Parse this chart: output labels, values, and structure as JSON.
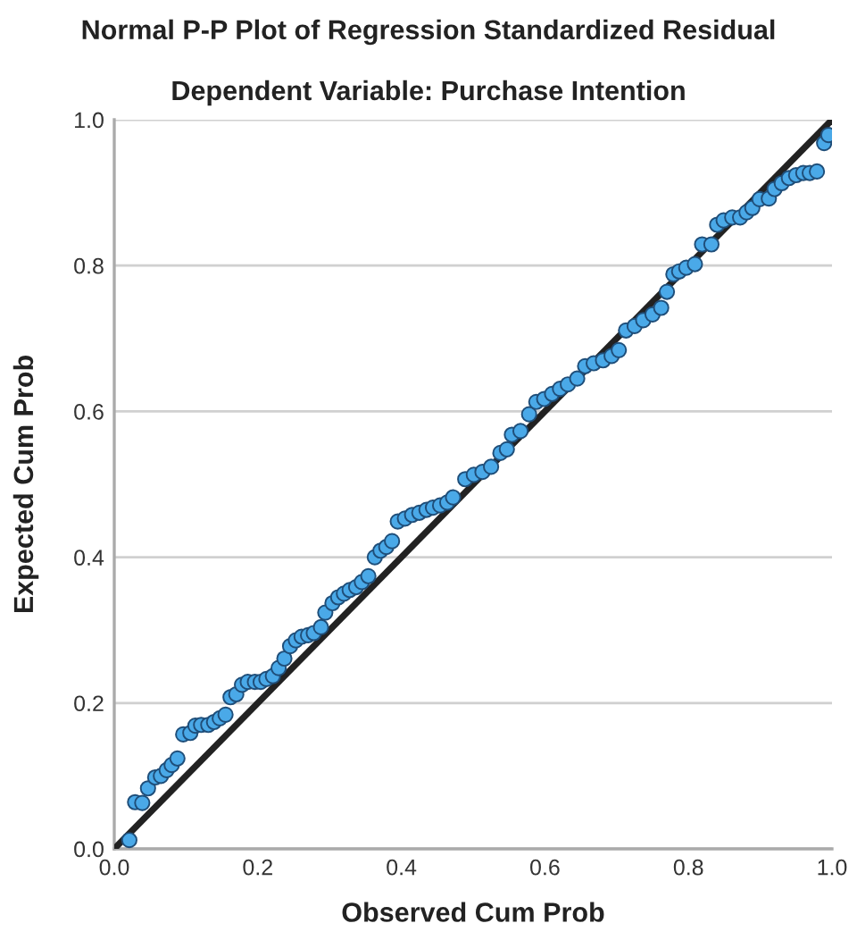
{
  "chart_data": {
    "type": "scatter",
    "title": "Normal P-P Plot of Regression Standardized Residual",
    "subtitle": "Dependent Variable: Purchase Intention",
    "xlabel": "Observed Cum Prob",
    "ylabel": "Expected Cum Prob",
    "xlim": [
      0,
      1
    ],
    "ylim": [
      0,
      1
    ],
    "xticks": [
      {
        "value": 0,
        "label": "0.0"
      },
      0.2,
      0.4,
      0.6,
      0.8,
      {
        "value": 1,
        "label": "1.0"
      }
    ],
    "yticks": [
      {
        "value": 0,
        "label": "0.0"
      },
      0.2,
      0.4,
      0.6,
      0.8,
      {
        "value": 1,
        "label": "1.0"
      }
    ],
    "grid": "y",
    "marker": "circle",
    "series": [
      {
        "color": "#4aa9e8",
        "x": [
          0.021,
          0.029,
          0.039,
          0.047,
          0.057,
          0.065,
          0.073,
          0.08,
          0.088,
          0.096,
          0.106,
          0.113,
          0.121,
          0.131,
          0.139,
          0.147,
          0.155,
          0.162,
          0.17,
          0.178,
          0.186,
          0.196,
          0.204,
          0.212,
          0.221,
          0.229,
          0.237,
          0.245,
          0.253,
          0.261,
          0.27,
          0.278,
          0.288,
          0.294,
          0.304,
          0.312,
          0.32,
          0.328,
          0.337,
          0.345,
          0.354,
          0.363,
          0.371,
          0.379,
          0.387,
          0.395,
          0.405,
          0.415,
          0.425,
          0.435,
          0.444,
          0.454,
          0.464,
          0.472,
          0.489,
          0.501,
          0.513,
          0.525,
          0.538,
          0.547,
          0.554,
          0.566,
          0.578,
          0.588,
          0.599,
          0.61,
          0.621,
          0.632,
          0.645,
          0.656,
          0.668,
          0.681,
          0.693,
          0.703,
          0.713,
          0.725,
          0.737,
          0.75,
          0.762,
          0.77,
          0.779,
          0.787,
          0.797,
          0.809,
          0.819,
          0.832,
          0.84,
          0.849,
          0.861,
          0.872,
          0.881,
          0.889,
          0.899,
          0.912,
          0.92,
          0.93,
          0.94,
          0.95,
          0.96,
          0.969,
          0.979,
          0.989,
          0.995
        ],
        "values": [
          0.012,
          0.064,
          0.063,
          0.083,
          0.098,
          0.1,
          0.108,
          0.115,
          0.124,
          0.157,
          0.159,
          0.169,
          0.17,
          0.17,
          0.174,
          0.179,
          0.184,
          0.208,
          0.212,
          0.225,
          0.229,
          0.229,
          0.229,
          0.233,
          0.237,
          0.248,
          0.261,
          0.278,
          0.286,
          0.291,
          0.293,
          0.296,
          0.304,
          0.324,
          0.337,
          0.345,
          0.35,
          0.355,
          0.359,
          0.366,
          0.374,
          0.4,
          0.409,
          0.414,
          0.422,
          0.449,
          0.453,
          0.458,
          0.461,
          0.465,
          0.468,
          0.471,
          0.475,
          0.482,
          0.507,
          0.513,
          0.517,
          0.524,
          0.543,
          0.548,
          0.568,
          0.573,
          0.596,
          0.613,
          0.617,
          0.624,
          0.631,
          0.637,
          0.645,
          0.662,
          0.666,
          0.67,
          0.676,
          0.684,
          0.711,
          0.717,
          0.725,
          0.733,
          0.742,
          0.764,
          0.788,
          0.792,
          0.797,
          0.802,
          0.829,
          0.829,
          0.856,
          0.862,
          0.866,
          0.866,
          0.873,
          0.879,
          0.891,
          0.892,
          0.905,
          0.913,
          0.92,
          0.924,
          0.927,
          0.927,
          0.929,
          0.968,
          0.979
        ]
      },
      {
        "type": "line",
        "color": "#222222",
        "x": [
          0,
          1
        ],
        "values": [
          0,
          1
        ],
        "line_style": "solid",
        "marker": "none"
      }
    ]
  }
}
